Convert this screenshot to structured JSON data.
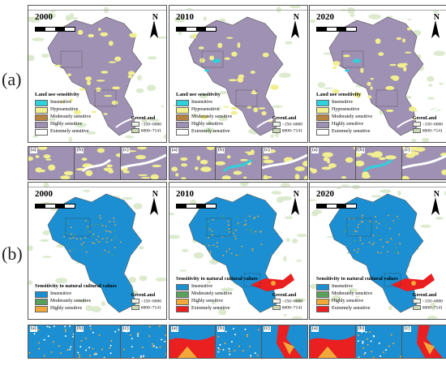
{
  "row_labels": [
    "(a)",
    "(b)"
  ],
  "north": "N",
  "colors": {
    "land_base": "#9f91b3",
    "land_yellow": "#f1ef8f",
    "insensitive_cyan": "#2ed1dc",
    "hyposensitive": "#f1ef8f",
    "moderate_brown": "#b7823f",
    "highly_white": "#ffffff",
    "nat_blue": "#1b8fd2",
    "nat_green": "#5aa05a",
    "nat_orange": "#f2a93a",
    "nat_red": "#ea1f1f",
    "bg_green": "#d7e6c5"
  },
  "land_legend": {
    "title": "Land use sensitivity",
    "items": [
      {
        "label": "Insensitive",
        "color": "#2ed1dc"
      },
      {
        "label": "Hyposensitive",
        "color": "#f1ef8f"
      },
      {
        "label": "Moderately sensitive",
        "color": "#b7823f"
      },
      {
        "label": "Highly sensitive",
        "color": "#9f91b3"
      },
      {
        "label": "Extremely sensitive",
        "color": "#ffffff"
      }
    ]
  },
  "natural_legend_2000": {
    "title": "Sensitivity to natural cultural values",
    "items": [
      {
        "label": "Insensitive",
        "color": "#1b8fd2"
      },
      {
        "label": "Moderately sensitive",
        "color": "#5aa05a"
      },
      {
        "label": "Highly sensitive",
        "color": "#f2a93a"
      }
    ]
  },
  "natural_legend_later": {
    "title": "Sensitivity to natural cultural values",
    "items": [
      {
        "label": "Insensitive",
        "color": "#1b8fd2"
      },
      {
        "label": "Moderately sensitive",
        "color": "#5aa05a"
      },
      {
        "label": "Highly sensitive",
        "color": "#f2a93a"
      },
      {
        "label": "Extremely sensitive",
        "color": "#ea1f1f"
      }
    ]
  },
  "green_legend": {
    "title": "GreenLand",
    "lines": [
      "~150~6000",
      "6000~7141"
    ]
  },
  "panels": [
    {
      "year": "2000"
    },
    {
      "year": "2010"
    },
    {
      "year": "2020"
    },
    {
      "year": "2000"
    },
    {
      "year": "2010"
    },
    {
      "year": "2020"
    }
  ],
  "inset_labels": [
    "(a)",
    "(b)",
    "(c)"
  ]
}
